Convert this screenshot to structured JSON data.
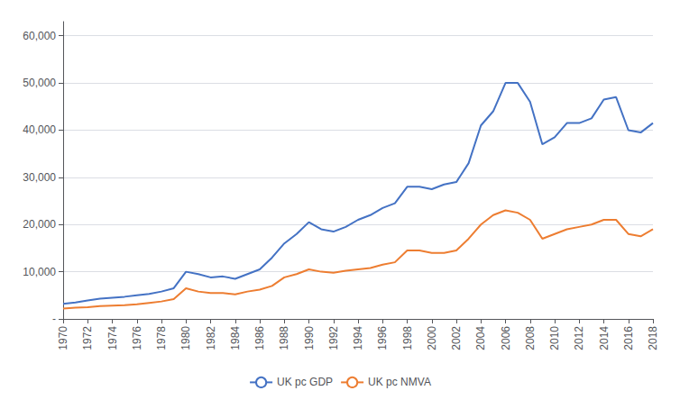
{
  "chart_data": {
    "type": "line",
    "x": [
      1970,
      1971,
      1972,
      1973,
      1974,
      1975,
      1976,
      1977,
      1978,
      1979,
      1980,
      1981,
      1982,
      1983,
      1984,
      1985,
      1986,
      1987,
      1988,
      1989,
      1990,
      1991,
      1992,
      1993,
      1994,
      1995,
      1996,
      1997,
      1998,
      1999,
      2000,
      2001,
      2002,
      2003,
      2004,
      2005,
      2006,
      2007,
      2008,
      2009,
      2010,
      2011,
      2012,
      2013,
      2014,
      2015,
      2016,
      2017,
      2018
    ],
    "series": [
      {
        "name": "UK pc GDP",
        "color": "#4472C4",
        "values": [
          3200,
          3500,
          3900,
          4300,
          4500,
          4700,
          5000,
          5300,
          5800,
          6500,
          10000,
          9500,
          8800,
          9000,
          8500,
          9500,
          10500,
          13000,
          16000,
          18000,
          20500,
          19000,
          18500,
          19500,
          21000,
          22000,
          23500,
          24500,
          28000,
          28000,
          27500,
          28500,
          29000,
          33000,
          41000,
          44000,
          50000,
          50000,
          46000,
          37000,
          38500,
          41500,
          41500,
          42500,
          46500,
          47000,
          40000,
          39500,
          41500
        ]
      },
      {
        "name": "UK pc NMVA",
        "color": "#ED7D31",
        "values": [
          2200,
          2400,
          2500,
          2700,
          2800,
          2900,
          3100,
          3400,
          3700,
          4200,
          6500,
          5800,
          5500,
          5500,
          5200,
          5800,
          6200,
          7000,
          8800,
          9500,
          10500,
          10000,
          9800,
          10200,
          10500,
          10800,
          11500,
          12000,
          14500,
          14500,
          14000,
          14000,
          14500,
          17000,
          20000,
          22000,
          23000,
          22500,
          21000,
          17000,
          18000,
          19000,
          19500,
          20000,
          21000,
          21000,
          18000,
          17500,
          19000
        ]
      }
    ],
    "xlim": [
      1970,
      2018
    ],
    "xticks": [
      1970,
      1972,
      1974,
      1976,
      1978,
      1980,
      1982,
      1984,
      1986,
      1988,
      1990,
      1992,
      1994,
      1996,
      1998,
      2000,
      2002,
      2004,
      2006,
      2008,
      2010,
      2012,
      2014,
      2016,
      2018
    ],
    "ylim": [
      0,
      63000
    ],
    "yticks": [
      {
        "value": 0,
        "label": "-"
      },
      {
        "value": 10000,
        "label": "10,000"
      },
      {
        "value": 20000,
        "label": "20,000"
      },
      {
        "value": 30000,
        "label": "30,000"
      },
      {
        "value": 40000,
        "label": "40,000"
      },
      {
        "value": 50000,
        "label": "50,000"
      },
      {
        "value": 60000,
        "label": "60,000"
      }
    ],
    "grid": true,
    "legend": "bottom"
  }
}
